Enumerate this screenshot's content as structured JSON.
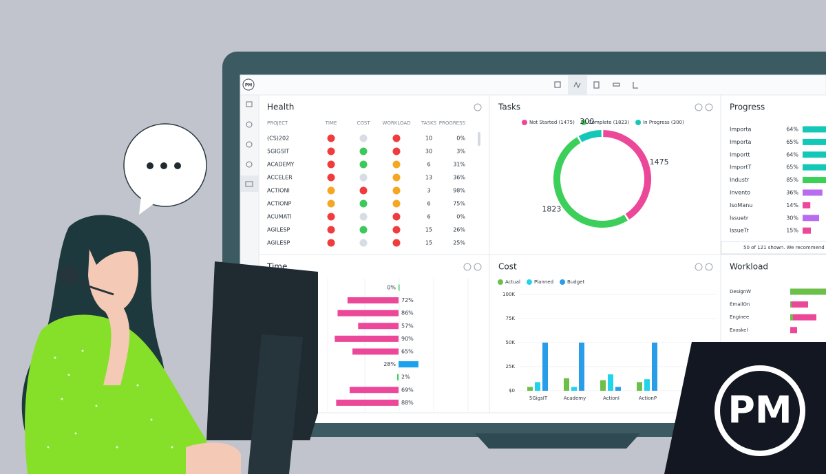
{
  "brand": {
    "badge": "PM",
    "logo": "PM"
  },
  "health": {
    "title": "Health",
    "columns": [
      "PROJECT",
      "TIME",
      "COST",
      "WORKLOAD",
      "TASKS",
      "PROGRESS"
    ],
    "rows": [
      {
        "project": "(CS)202",
        "time": "#f03c3c",
        "cost": "#d8dce4",
        "workload": "#f03c3c",
        "tasks": 10,
        "progress": "0%"
      },
      {
        "project": "5GIGSIT",
        "time": "#f03c3c",
        "cost": "#3cc85a",
        "workload": "#f03c3c",
        "tasks": 30,
        "progress": "3%"
      },
      {
        "project": "ACADEMY",
        "time": "#f03c3c",
        "cost": "#3cc85a",
        "workload": "#f5a623",
        "tasks": 6,
        "progress": "31%"
      },
      {
        "project": "ACCELER",
        "time": "#f03c3c",
        "cost": "#d8dce4",
        "workload": "#f5a623",
        "tasks": 13,
        "progress": "36%"
      },
      {
        "project": "ACTIONI",
        "time": "#f5a623",
        "cost": "#f03c3c",
        "workload": "#f5a623",
        "tasks": 3,
        "progress": "98%"
      },
      {
        "project": "ACTIONP",
        "time": "#f5a623",
        "cost": "#3cc85a",
        "workload": "#f5a623",
        "tasks": 6,
        "progress": "75%"
      },
      {
        "project": "ACUMATI",
        "time": "#f03c3c",
        "cost": "#d8dce4",
        "workload": "#f03c3c",
        "tasks": 6,
        "progress": "0%"
      },
      {
        "project": "AGILESP",
        "time": "#f03c3c",
        "cost": "#3cc85a",
        "workload": "#f03c3c",
        "tasks": 15,
        "progress": "26%"
      },
      {
        "project": "AGILESP",
        "time": "#f03c3c",
        "cost": "#d8dce4",
        "workload": "#f03c3c",
        "tasks": 15,
        "progress": "25%"
      }
    ]
  },
  "chart_data": [
    {
      "type": "donut",
      "title": "Tasks",
      "categories": [
        "Not Started (1475)",
        "Complete (1823)",
        "In Progress (300)"
      ],
      "values": [
        1475,
        1823,
        300
      ],
      "colors": [
        "#ec4899",
        "#3ccf5a",
        "#14c8b8"
      ]
    },
    {
      "type": "progress",
      "title": "Progress",
      "categories": [
        "Importa",
        "Importa",
        "Importt",
        "ImportT",
        "Industr",
        "Invento",
        "IsoManu",
        "Issuetr",
        "IssueTr"
      ],
      "values": [
        64,
        65,
        64,
        65,
        85,
        36,
        14,
        30,
        15
      ],
      "value_labels": [
        "64%",
        "65%",
        "64%",
        "65%",
        "85%",
        "36%",
        "14%",
        "30%",
        "15%"
      ],
      "colors": [
        "#14c8b8",
        "#14c8b8",
        "#14c8b8",
        "#14c8b8",
        "#3ccf5a",
        "#b86cf0",
        "#ec4899",
        "#b86cf0",
        "#ec4899"
      ],
      "footer": "50 of 121 shown. We recommend yo"
    },
    {
      "type": "diverging",
      "title": "Time",
      "values": [
        0,
        72,
        86,
        57,
        90,
        65,
        28,
        2,
        69,
        88
      ],
      "value_labels": [
        "0%",
        "72%",
        "86%",
        "57%",
        "90%",
        "65%",
        "28%",
        "2%",
        "69%",
        "88%"
      ],
      "sides": [
        "right",
        "left",
        "left",
        "left",
        "left",
        "left",
        "right",
        "left",
        "left",
        "left"
      ],
      "colors": [
        "#3ccf5a",
        "#ec4899",
        "#ec4899",
        "#ec4899",
        "#ec4899",
        "#ec4899",
        "#1aa3ec",
        "#3ccf5a",
        "#ec4899",
        "#ec4899"
      ]
    },
    {
      "type": "bar",
      "title": "Cost",
      "categories": [
        "5GigsIT",
        "Academy",
        "ActionI",
        "ActionP"
      ],
      "series": [
        {
          "name": "Actual",
          "color": "#6cc04a",
          "values": [
            4000,
            13000,
            11000,
            9000
          ]
        },
        {
          "name": "Planned",
          "color": "#22d3ee",
          "values": [
            9000,
            4000,
            17000,
            12000
          ]
        },
        {
          "name": "Budget",
          "color": "#2a9de8",
          "values": [
            50000,
            50000,
            4000,
            50000
          ]
        }
      ],
      "ylim": [
        0,
        100000
      ],
      "yticks": [
        {
          "value": 0,
          "label": "$0"
        },
        {
          "value": 25000,
          "label": "25K"
        },
        {
          "value": 50000,
          "label": "50K"
        },
        {
          "value": 75000,
          "label": "75K"
        },
        {
          "value": 100000,
          "label": "100K"
        }
      ]
    },
    {
      "type": "stacked",
      "title": "Workload",
      "categories": [
        "DesignW",
        "EmailOn",
        "Enginee",
        "Exoskel"
      ],
      "series": [
        {
          "color": "#6cc04a",
          "values": [
            52,
            2,
            4,
            0
          ]
        },
        {
          "color": "#ec4899",
          "values": [
            0,
            24,
            34,
            10
          ]
        }
      ]
    }
  ]
}
